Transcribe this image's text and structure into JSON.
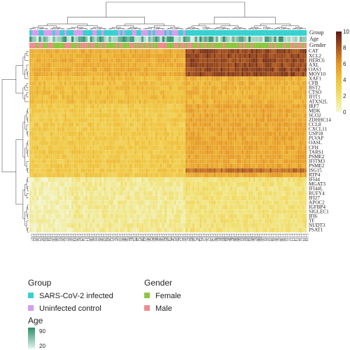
{
  "chart_data": {
    "type": "heatmap",
    "title": "",
    "annotation_tracks": [
      "Group",
      "Age",
      "Gender"
    ],
    "genes": [
      "CAT",
      "XCL2",
      "HERC6",
      "AXL",
      "OAS1",
      "MOV10",
      "XAF1",
      "CFB",
      "BST2",
      "CTSO",
      "IFIT1",
      "ATXN2L",
      "IRF7",
      "MDK",
      "SCO2",
      "ZDHHC14",
      "CCL8",
      "CXCL11",
      "USP18",
      "PLVAP",
      "OASL",
      "CFH",
      "TARS1",
      "PSME2",
      "IFITM3",
      "PSME2",
      "ISG15",
      "RTP4",
      "IFI44",
      "MGAT3",
      "IFI44L",
      "RUFY4",
      "IFI27",
      "APOC2",
      "IGFBP4",
      "SIGLEC1",
      "IFI6",
      "TF",
      "NUDT3",
      "PSAT1"
    ],
    "samples": [
      "L027",
      "L021",
      "L039",
      "L012",
      "L035",
      "L018",
      "L003",
      "L024",
      "L015",
      "L030",
      "L008",
      "L033",
      "L001",
      "L026",
      "L010",
      "L037",
      "L005",
      "L020",
      "L014",
      "L029",
      "L002",
      "L023",
      "L034",
      "L017",
      "L011",
      "L038",
      "L006",
      "L031",
      "L022",
      "L009",
      "L036",
      "L019",
      "L004",
      "L028",
      "L013",
      "L025",
      "L007",
      "L032",
      "L016",
      "L040",
      "L048",
      "L055",
      "L061",
      "L067",
      "L072",
      "L044",
      "L051",
      "L058",
      "L064",
      "L070",
      "L046",
      "L053",
      "L060",
      "L066",
      "L042",
      "L049",
      "L056",
      "L063",
      "L069",
      "L074",
      "L045",
      "L052",
      "L059",
      "L065",
      "L071",
      "L043",
      "L050",
      "L057",
      "L062",
      "L068",
      "L073",
      "L047",
      "L054",
      "L041",
      "L075",
      "L076",
      "L077",
      "L078",
      "L079",
      "L080",
      "L081",
      "L082",
      "L083",
      "L084",
      "L085",
      "L086",
      "L087",
      "L088",
      "L089",
      "L090",
      "L091",
      "L092",
      "L093",
      "L094",
      "L095",
      "L096",
      "L097",
      "L098",
      "L099",
      "L100",
      "L101",
      "L102",
      "L103",
      "L104",
      "L105",
      "L106",
      "L107",
      "L108",
      "L109",
      "L110",
      "L111",
      "L112",
      "L113",
      "L114",
      "L115",
      "L116",
      "L117",
      "L118",
      "L119"
    ],
    "group_pattern_note": "",
    "color_scale": {
      "min": 0,
      "max": 10,
      "ticks": [
        0,
        2,
        4,
        6,
        8,
        10
      ],
      "colors": [
        "#f2f7d3",
        "#f1e06f",
        "#f0c23a",
        "#e69625",
        "#a8531d",
        "#5a1a12"
      ]
    },
    "age_scale": {
      "min": 20,
      "max": 90,
      "colors": [
        "#dff3ec",
        "#2e8f6a"
      ]
    },
    "legend": {
      "group_title": "Group",
      "group_items": [
        {
          "label": "SARS-CoV-2 infected",
          "color": "#35d0d0"
        },
        {
          "label": "Uninfected control",
          "color": "#d59cf0"
        }
      ],
      "gender_title": "Gender",
      "gender_items": [
        {
          "label": "Female",
          "color": "#8cc63f"
        },
        {
          "label": "Male",
          "color": "#ee8c8c"
        }
      ],
      "age_title": "Age",
      "age_labels": [
        "90",
        "20"
      ]
    }
  }
}
